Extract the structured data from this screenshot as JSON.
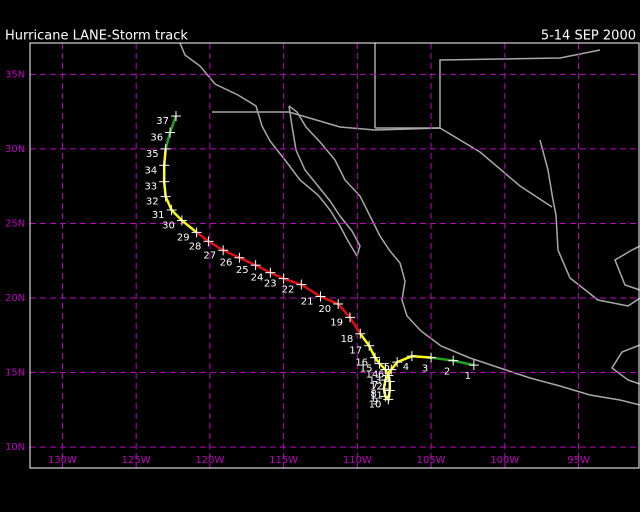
{
  "header": {
    "title": "Hurricane LANE-Storm track",
    "dates": "5-14 SEP 2000"
  },
  "map": {
    "lonlim": [
      -132.2,
      -90.9
    ],
    "latlim": [
      8.6,
      37.1
    ],
    "lonticks": [
      {
        "value": -130,
        "label": "130W"
      },
      {
        "value": -125,
        "label": "125W"
      },
      {
        "value": -120,
        "label": "120W"
      },
      {
        "value": -115,
        "label": "115W"
      },
      {
        "value": -110,
        "label": "110W"
      },
      {
        "value": -105,
        "label": "105W"
      },
      {
        "value": -100,
        "label": "100W"
      },
      {
        "value": -95,
        "label": "95W"
      }
    ],
    "latticks": [
      {
        "value": 10,
        "label": "10N"
      },
      {
        "value": 15,
        "label": "15N"
      },
      {
        "value": 20,
        "label": "20N"
      },
      {
        "value": 25,
        "label": "25N"
      },
      {
        "value": 30,
        "label": "30N"
      },
      {
        "value": 35,
        "label": "35N"
      }
    ],
    "grid_color": "#c000c0",
    "points": [
      {
        "label": "1",
        "lon": -102.1,
        "lat": 15.5
      },
      {
        "label": "2",
        "lon": -103.5,
        "lat": 15.8
      },
      {
        "label": "3",
        "lon": -105.0,
        "lat": 16.0
      },
      {
        "label": "4",
        "lon": -106.3,
        "lat": 16.1
      },
      {
        "label": "5",
        "lon": -107.3,
        "lat": 15.7
      },
      {
        "label": "6",
        "lon": -107.7,
        "lat": 15.2
      },
      {
        "label": "7",
        "lon": -108.1,
        "lat": 14.5
      },
      {
        "label": "8",
        "lon": -108.2,
        "lat": 13.9
      },
      {
        "label": "9",
        "lon": -108.1,
        "lat": 13.4
      },
      {
        "label": "10",
        "lon": -107.9,
        "lat": 13.2
      },
      {
        "label": "11",
        "lon": -107.8,
        "lat": 13.8
      },
      {
        "label": "12",
        "lon": -107.8,
        "lat": 14.4
      },
      {
        "label": "13",
        "lon": -107.9,
        "lat": 14.8
      },
      {
        "label": "14",
        "lon": -108.1,
        "lat": 15.2
      },
      {
        "label": "15",
        "lon": -108.5,
        "lat": 15.6
      },
      {
        "label": "16",
        "lon": -108.8,
        "lat": 16.0
      },
      {
        "label": "17",
        "lon": -109.2,
        "lat": 16.8
      },
      {
        "label": "18",
        "lon": -109.8,
        "lat": 17.6
      },
      {
        "label": "19",
        "lon": -110.5,
        "lat": 18.7
      },
      {
        "label": "20",
        "lon": -111.3,
        "lat": 19.6
      },
      {
        "label": "21",
        "lon": -112.5,
        "lat": 20.1
      },
      {
        "label": "22",
        "lon": -113.8,
        "lat": 20.9
      },
      {
        "label": "23",
        "lon": -115.0,
        "lat": 21.3
      },
      {
        "label": "24",
        "lon": -115.9,
        "lat": 21.7
      },
      {
        "label": "25",
        "lon": -116.9,
        "lat": 22.2
      },
      {
        "label": "26",
        "lon": -118.0,
        "lat": 22.7
      },
      {
        "label": "27",
        "lon": -119.1,
        "lat": 23.2
      },
      {
        "label": "28",
        "lon": -120.1,
        "lat": 23.8
      },
      {
        "label": "29",
        "lon": -120.9,
        "lat": 24.4
      },
      {
        "label": "30",
        "lon": -121.9,
        "lat": 25.2
      },
      {
        "label": "31",
        "lon": -122.6,
        "lat": 25.9
      },
      {
        "label": "32",
        "lon": -123.0,
        "lat": 26.8
      },
      {
        "label": "33",
        "lon": -123.1,
        "lat": 27.8
      },
      {
        "label": "34",
        "lon": -123.1,
        "lat": 28.9
      },
      {
        "label": "35",
        "lon": -123.0,
        "lat": 30.0
      },
      {
        "label": "36",
        "lon": -122.7,
        "lat": 31.1
      },
      {
        "label": "37",
        "lon": -122.3,
        "lat": 32.2
      }
    ],
    "segments": [
      {
        "start": 0,
        "end": 2,
        "color": "#22a022"
      },
      {
        "start": 2,
        "end": 17,
        "color": "#ffff00"
      },
      {
        "start": 17,
        "end": 28,
        "color": "#e01010"
      },
      {
        "start": 28,
        "end": 34,
        "color": "#ffff00"
      },
      {
        "start": 34,
        "end": 36,
        "color": "#22a022"
      }
    ]
  }
}
